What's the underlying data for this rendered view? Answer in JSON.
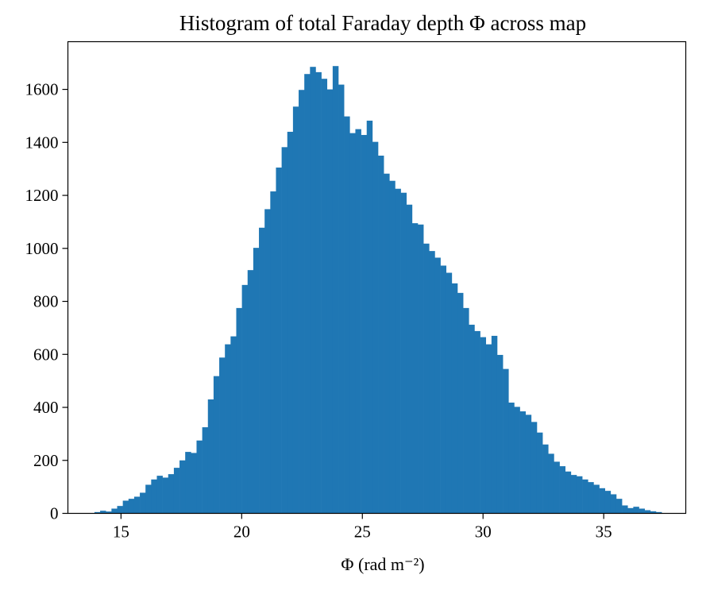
{
  "chart_data": {
    "type": "bar",
    "title": "Histogram of total Faraday depth Φ across map",
    "xlabel": "Φ (rad m⁻²)",
    "ylabel": "",
    "xlim": [
      12.8,
      38.4
    ],
    "ylim": [
      0,
      1780
    ],
    "xticks": [
      15,
      20,
      25,
      30,
      35
    ],
    "yticks": [
      0,
      200,
      400,
      600,
      800,
      1000,
      1200,
      1400,
      1600
    ],
    "grid": false,
    "bar_color": "#1f77b4",
    "bin_start": 13.9,
    "bin_width": 0.235,
    "values": [
      5,
      10,
      7,
      18,
      28,
      48,
      55,
      63,
      78,
      108,
      128,
      142,
      135,
      148,
      172,
      200,
      232,
      228,
      275,
      325,
      430,
      518,
      588,
      638,
      668,
      775,
      862,
      918,
      1002,
      1078,
      1148,
      1215,
      1305,
      1382,
      1440,
      1535,
      1598,
      1658,
      1685,
      1665,
      1640,
      1600,
      1688,
      1618,
      1498,
      1435,
      1450,
      1428,
      1482,
      1402,
      1350,
      1282,
      1255,
      1225,
      1210,
      1165,
      1095,
      1090,
      1018,
      990,
      965,
      935,
      908,
      868,
      832,
      775,
      712,
      688,
      665,
      638,
      670,
      598,
      545,
      418,
      402,
      385,
      372,
      345,
      305,
      260,
      225,
      195,
      178,
      158,
      145,
      140,
      128,
      118,
      108,
      95,
      85,
      72,
      55,
      30,
      20,
      25,
      18,
      12,
      8,
      5
    ]
  }
}
